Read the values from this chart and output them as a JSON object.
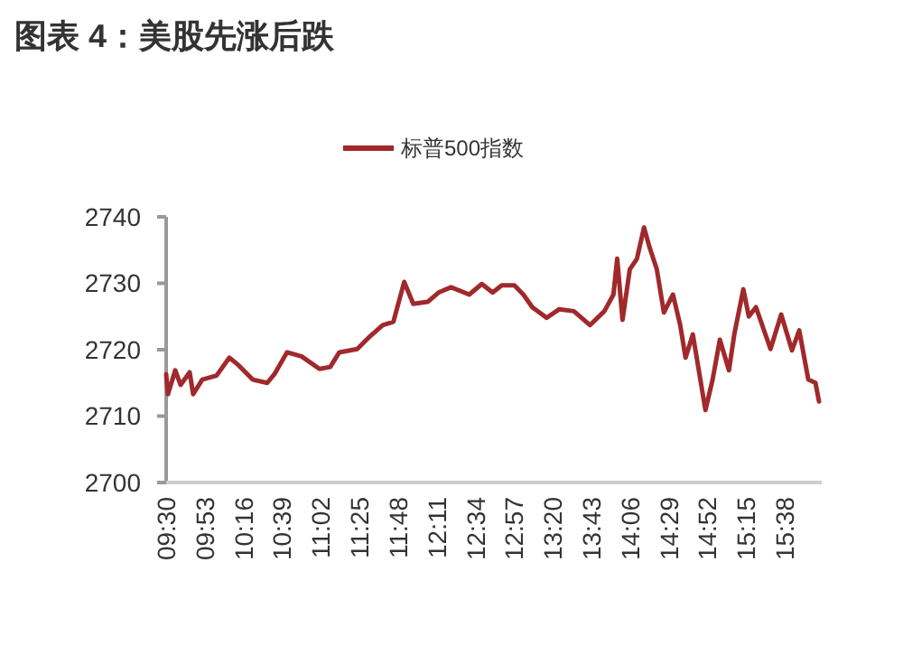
{
  "chart_data": {
    "type": "line",
    "title": "图表 4：美股先涨后跌",
    "x": [
      9.5,
      9.518,
      9.59,
      9.643,
      9.733,
      9.768,
      9.858,
      10.0,
      10.127,
      10.215,
      10.358,
      10.502,
      10.573,
      10.698,
      10.842,
      11.02,
      11.127,
      11.217,
      11.395,
      11.52,
      11.647,
      11.753,
      11.86,
      11.95,
      12.093,
      12.2,
      12.325,
      12.505,
      12.63,
      12.737,
      12.827,
      12.952,
      13.042,
      13.13,
      13.273,
      13.398,
      13.542,
      13.703,
      13.845,
      13.935,
      13.972,
      14.025,
      14.097,
      14.168,
      14.238,
      14.293,
      14.365,
      14.435,
      14.525,
      14.597,
      14.65,
      14.722,
      14.847,
      14.918,
      14.99,
      15.08,
      15.133,
      15.223,
      15.277,
      15.348,
      15.492,
      15.598,
      15.705,
      15.777,
      15.867,
      15.938,
      15.973
    ],
    "series": [
      {
        "name": "标普500指数",
        "color": "#a0292c",
        "values": [
          2716.3,
          2713.3,
          2716.9,
          2714.7,
          2716.6,
          2713.3,
          2715.5,
          2716.1,
          2718.8,
          2717.7,
          2715.5,
          2715.0,
          2716.3,
          2719.6,
          2719.0,
          2717.1,
          2717.4,
          2719.6,
          2720.1,
          2722.0,
          2723.7,
          2724.2,
          2730.2,
          2726.9,
          2727.2,
          2728.6,
          2729.4,
          2728.3,
          2729.9,
          2728.6,
          2729.7,
          2729.7,
          2728.3,
          2726.4,
          2724.8,
          2726.1,
          2725.8,
          2723.7,
          2725.8,
          2728.3,
          2733.7,
          2724.5,
          2732.1,
          2733.7,
          2738.4,
          2735.4,
          2732.1,
          2725.6,
          2728.3,
          2723.7,
          2718.8,
          2722.3,
          2710.9,
          2715.5,
          2721.5,
          2716.9,
          2722.3,
          2729.1,
          2725.0,
          2726.4,
          2720.1,
          2725.3,
          2719.9,
          2722.9,
          2715.5,
          2715.0,
          2712.2
        ]
      }
    ],
    "xlim": [
      9.5,
      16.0
    ],
    "xticks": [
      {
        "value": 9.5,
        "label": "09:30"
      },
      {
        "value": 9.883,
        "label": "09:53"
      },
      {
        "value": 10.267,
        "label": "10:16"
      },
      {
        "value": 10.65,
        "label": "10:39"
      },
      {
        "value": 11.033,
        "label": "11:02"
      },
      {
        "value": 11.417,
        "label": "11:25"
      },
      {
        "value": 11.8,
        "label": "11:48"
      },
      {
        "value": 12.183,
        "label": "12:11"
      },
      {
        "value": 12.567,
        "label": "12:34"
      },
      {
        "value": 12.95,
        "label": "12:57"
      },
      {
        "value": 13.333,
        "label": "13:20"
      },
      {
        "value": 13.717,
        "label": "13:43"
      },
      {
        "value": 14.1,
        "label": "14:06"
      },
      {
        "value": 14.483,
        "label": "14:29"
      },
      {
        "value": 14.867,
        "label": "14:52"
      },
      {
        "value": 15.25,
        "label": "15:15"
      },
      {
        "value": 15.633,
        "label": "15:38"
      }
    ],
    "ylim": [
      2700,
      2740
    ],
    "yticks": [
      2700,
      2710,
      2720,
      2730,
      2740
    ],
    "grid": false,
    "legend": "top",
    "marker": "none",
    "line_style": "solid"
  }
}
